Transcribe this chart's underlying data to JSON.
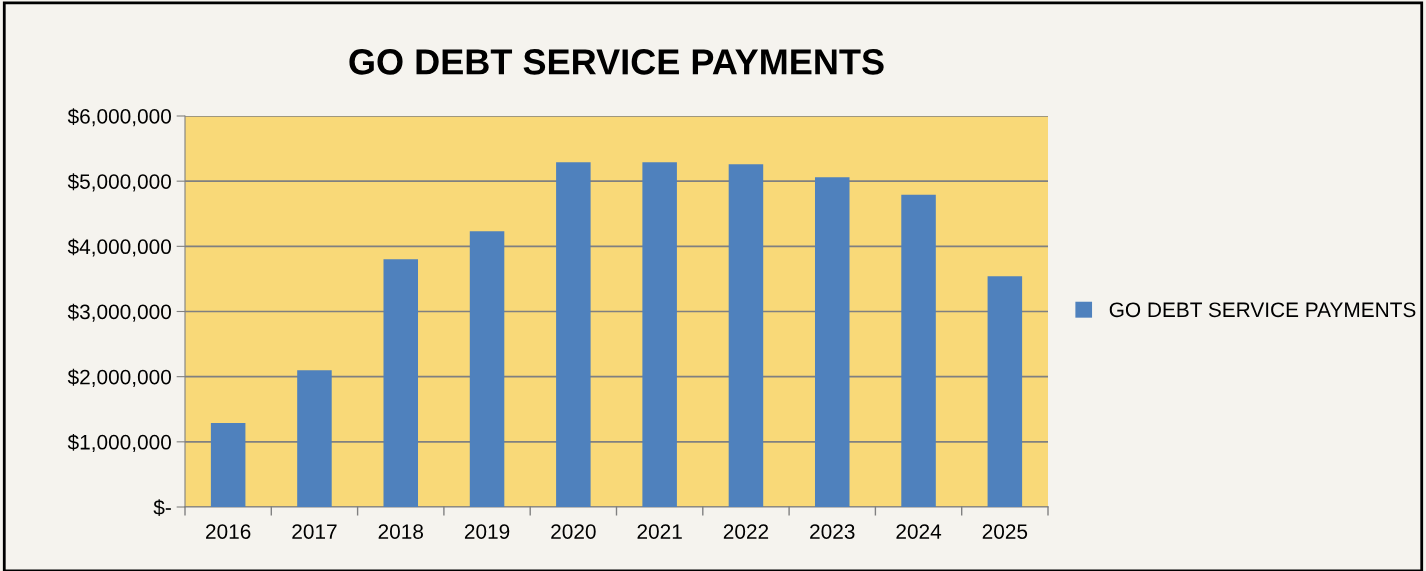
{
  "chart_data": {
    "type": "bar",
    "title": "GO DEBT SERVICE PAYMENTS",
    "categories": [
      "2016",
      "2017",
      "2018",
      "2019",
      "2020",
      "2021",
      "2022",
      "2023",
      "2024",
      "2025"
    ],
    "series": [
      {
        "name": "GO DEBT SERVICE PAYMENTS",
        "color": "#4f81bd",
        "values": [
          1290000,
          2100000,
          3800000,
          4230000,
          5290000,
          5290000,
          5260000,
          5060000,
          4790000,
          3540000
        ]
      }
    ],
    "ylim": [
      0,
      6000000
    ],
    "yticks": [
      {
        "value": 0,
        "label": "$-"
      },
      {
        "value": 1000000,
        "label": "$1,000,000"
      },
      {
        "value": 2000000,
        "label": "$2,000,000"
      },
      {
        "value": 3000000,
        "label": "$3,000,000"
      },
      {
        "value": 4000000,
        "label": "$4,000,000"
      },
      {
        "value": 5000000,
        "label": "$5,000,000"
      },
      {
        "value": 6000000,
        "label": "$6,000,000"
      }
    ],
    "grid": "y",
    "legend": "right"
  }
}
